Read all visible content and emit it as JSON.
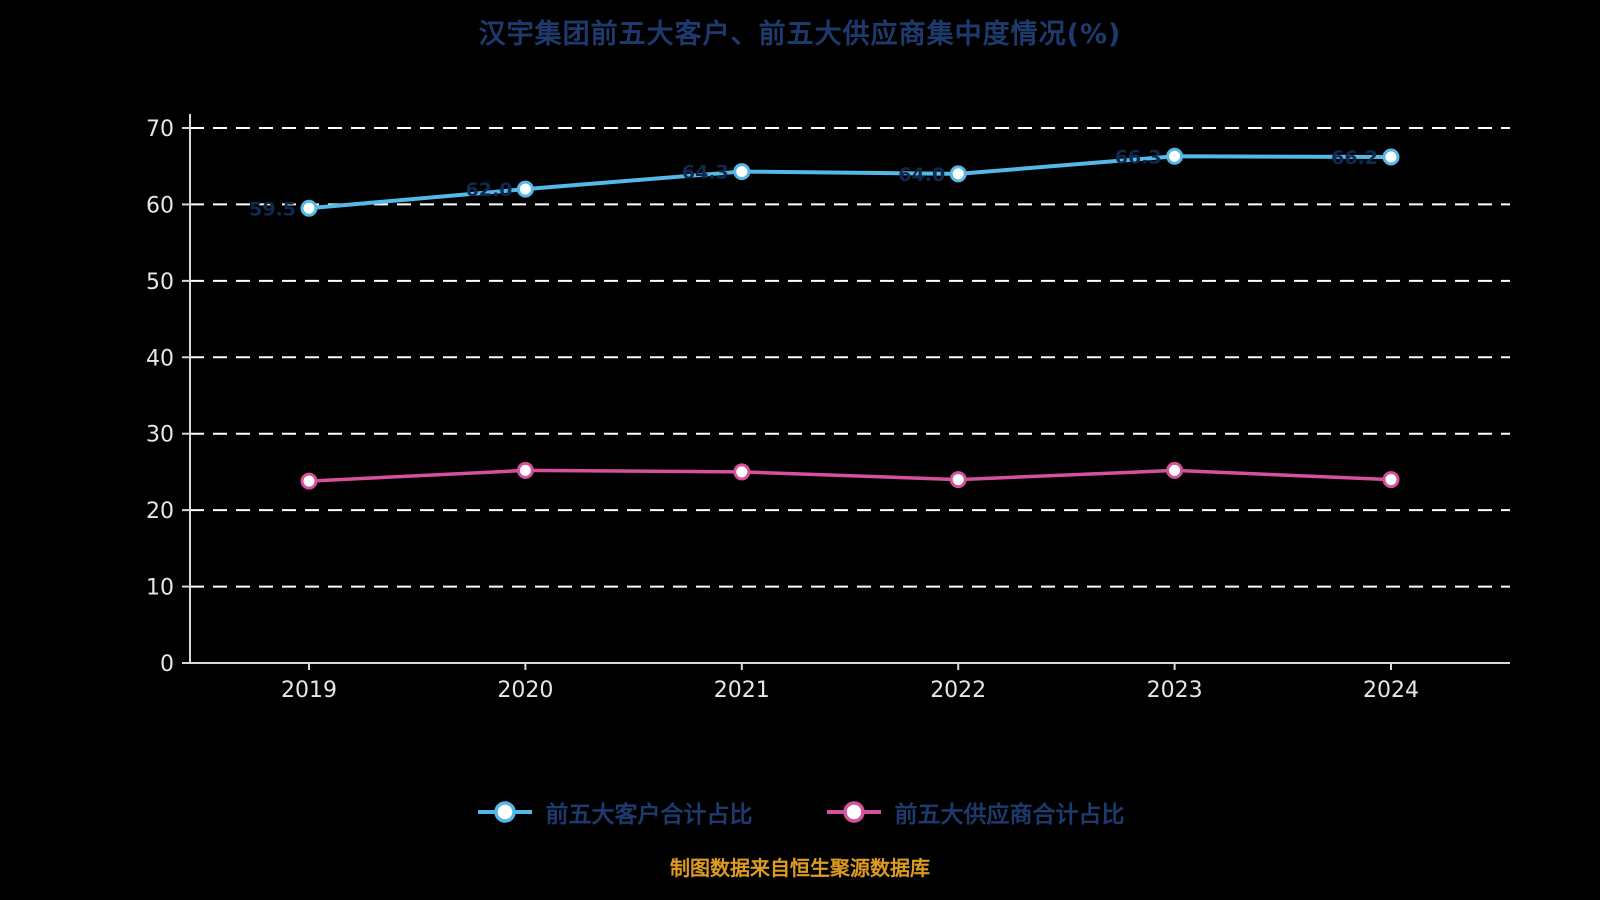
{
  "chart_data": {
    "type": "line",
    "title": "汉宇集团前五大客户、前五大供应商集中度情况(%)",
    "x": [
      "2019",
      "2020",
      "2021",
      "2022",
      "2023",
      "2024"
    ],
    "series": [
      {
        "name": "前五大客户合计占比",
        "color": "#55b8e8",
        "values": [
          59.5,
          62.0,
          64.3,
          64.0,
          66.3,
          66.2
        ],
        "show_labels": true
      },
      {
        "name": "前五大供应商合计占比",
        "color": "#d6519c",
        "values": [
          23.8,
          25.2,
          25.0,
          24.0,
          25.2,
          24.0
        ],
        "show_labels": false
      }
    ],
    "ylim": [
      0,
      70
    ],
    "ytick_step": 10,
    "grid": "dashed-horizontal",
    "legend_position": "bottom"
  },
  "footnote": "制图数据来自恒生聚源数据库",
  "colors": {
    "background": "#000000",
    "title": "#1e3a6d",
    "grid": "#ffffff",
    "axis": "#d8d8d8",
    "tick_label": "#e6e6e6",
    "legend_label": "#1e3a6d",
    "footnote": "#dd9c21",
    "data_label": "#10294f",
    "marker_fill": "#ffffff"
  }
}
